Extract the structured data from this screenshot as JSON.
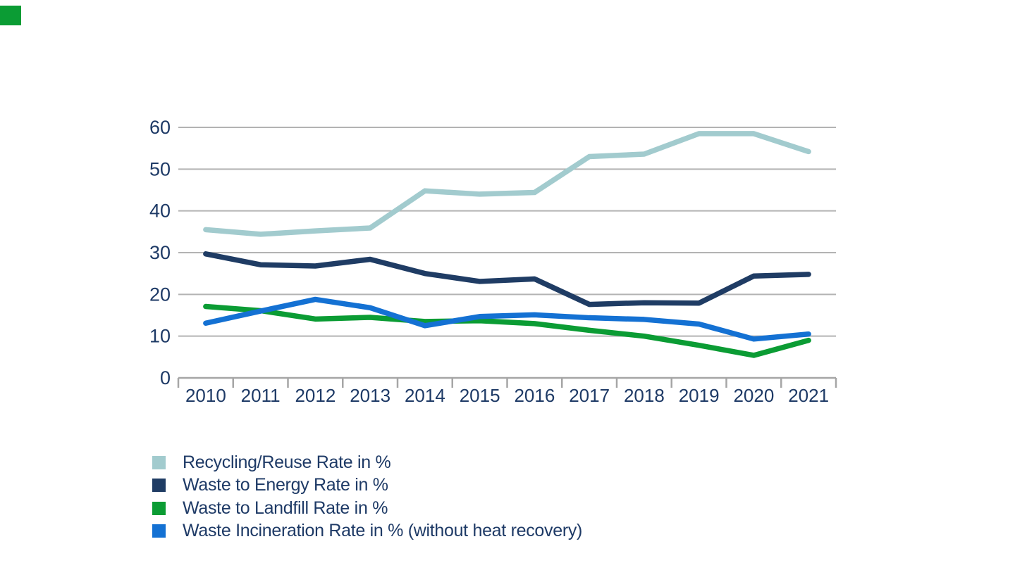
{
  "page": {
    "accent_square_color": "#0B9C34",
    "background_color": "#FFFFFF",
    "text_color": "#1E3A66",
    "gridline_color": "#B3B3B3",
    "axis_color": "#A6A6A6"
  },
  "chart_data": {
    "type": "line",
    "title": "",
    "xlabel": "",
    "ylabel": "",
    "x": [
      "2010",
      "2011",
      "2012",
      "2013",
      "2014",
      "2015",
      "2016",
      "2017",
      "2018",
      "2019",
      "2020",
      "2021"
    ],
    "ylim": [
      0,
      60
    ],
    "yticks": [
      0,
      10,
      20,
      30,
      40,
      50,
      60
    ],
    "grid": "horizontal",
    "legend_position": "bottom-left",
    "series": [
      {
        "name": "Recycling/Reuse Rate in %",
        "color": "#A2CBCE",
        "values": [
          35.5,
          34.4,
          35.2,
          35.9,
          44.8,
          44.0,
          44.4,
          53.0,
          53.6,
          58.5,
          58.5,
          54.2
        ]
      },
      {
        "name": "Waste to Energy Rate in %",
        "color": "#1F3C64",
        "values": [
          29.7,
          27.1,
          26.8,
          28.4,
          25.0,
          23.1,
          23.7,
          17.6,
          18.0,
          17.9,
          24.4,
          24.8
        ]
      },
      {
        "name": "Waste to Landfill Rate in %",
        "color": "#0B9C34",
        "values": [
          17.1,
          16.1,
          14.1,
          14.5,
          13.5,
          13.7,
          13.0,
          11.4,
          10.0,
          7.8,
          5.4,
          9.0
        ]
      },
      {
        "name": "Waste Incineration Rate in % (without heat recovery)",
        "color": "#1471D3",
        "values": [
          13.1,
          16.0,
          18.8,
          16.8,
          12.5,
          14.7,
          15.1,
          14.4,
          14.0,
          12.9,
          9.3,
          10.5
        ]
      }
    ]
  }
}
